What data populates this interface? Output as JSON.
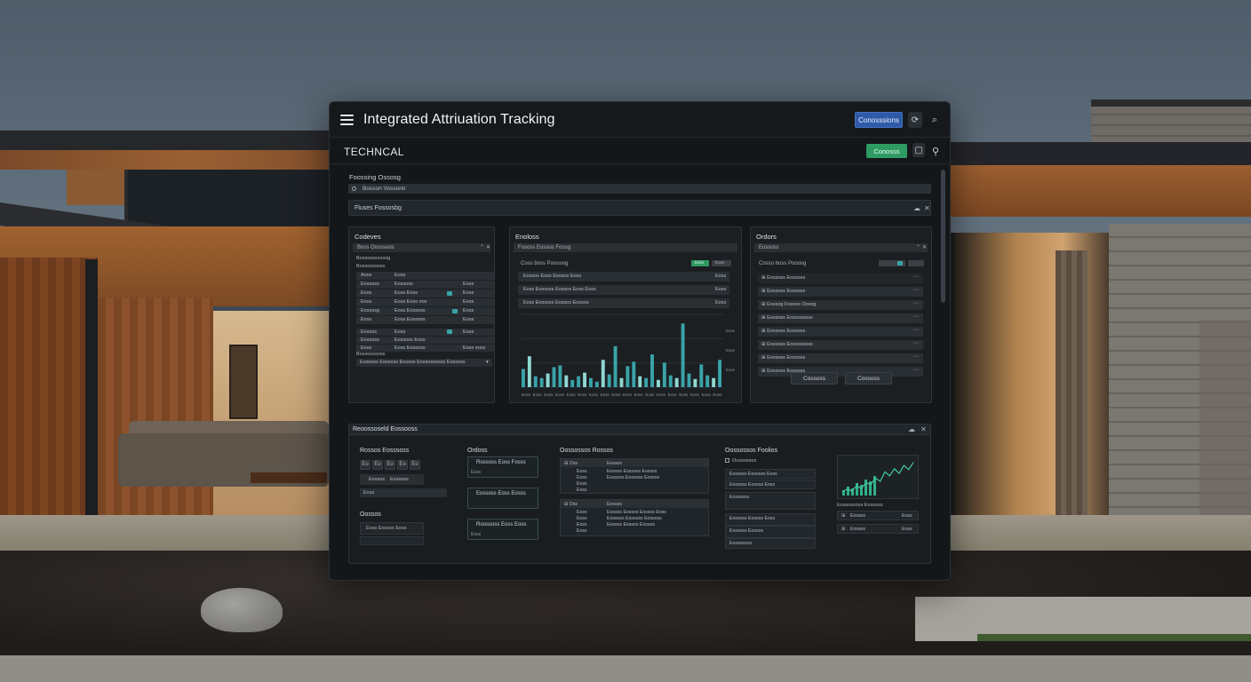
{
  "app": {
    "title": "Integrated Attriuation Tracking",
    "header_button": "Conosssions"
  },
  "section": {
    "title": "TECHNCAL",
    "button": "Conosss"
  },
  "filters": {
    "label": "Foossing Ossosg",
    "bar_text": "Bosson Vossonn",
    "field_label": "Fluses Fossosbg"
  },
  "panels": {
    "left": {
      "title": "Codeves",
      "subbar": "Boss Oosssoos",
      "group_label_1": "Bosssossossog",
      "group_label_2": "Bossoossoss",
      "rows": [
        {
          "a": "Aoss",
          "b": "Eoss",
          "c": ""
        },
        {
          "a": "Eossoss",
          "b": "Eossoss",
          "c": "Eoss"
        },
        {
          "a": "Eoss",
          "b": "Eoss Eoss",
          "c": "Eoss"
        },
        {
          "a": "Eoss",
          "b": "Eoss Eoss oos",
          "c": "Eoss"
        },
        {
          "a": "Eossosg",
          "b": "Eoss Eossoss",
          "c": "Eoss"
        },
        {
          "a": "Eoss",
          "b": "Eoss Eossoss",
          "c": "Eoss"
        }
      ],
      "rows2": [
        {
          "a": "Eossos",
          "b": "Eoss",
          "c": "Eoss"
        },
        {
          "a": "Eossoss",
          "b": "Eossoss Eoss",
          "c": ""
        },
        {
          "a": "Eoss",
          "b": "Eoss Eossoss",
          "c": "Eoss eoss"
        }
      ],
      "group_label_3": "Bossoossoss",
      "footer_row": "Eossoss Eossoss Eossos Eossossosss Eossoss"
    },
    "middle": {
      "title": "Enoloss",
      "subbar": "Fososs Eossos Fosog",
      "chart_label": "Coss boss Pooosog",
      "chip_green": "Eoss",
      "chip_grey": "Eoss",
      "rows": [
        {
          "t": "Eossos Eoss Eossos Eoss",
          "r": "Eoss"
        },
        {
          "t": "Eoss Eossoss Eossos Eoss Eoss",
          "r": "Eoss"
        },
        {
          "t": "Eoss Eossoss Eossos Eossos",
          "r": "Eoss"
        }
      ],
      "chart_data": {
        "type": "bar",
        "values": [
          20,
          34,
          12,
          10,
          15,
          22,
          24,
          13,
          8,
          12,
          16,
          10,
          6,
          30,
          14,
          45,
          10,
          23,
          28,
          12,
          10,
          36,
          8,
          27,
          13,
          10,
          70,
          15,
          9,
          25,
          13,
          10,
          30
        ],
        "ylim": [
          0,
          80
        ],
        "x_ticks": [
          "Eoss",
          "Eoss",
          "Eoss",
          "Eoss",
          "Eoss",
          "Eoss",
          "Eoss",
          "Eoss",
          "Eoss",
          "Eoss",
          "Eoss",
          "Eoss",
          "Eoss",
          "Eoss",
          "Eoss",
          "Eoss",
          "Eoss",
          "Eoss"
        ],
        "y_ticks": [
          "Eoss",
          "Eoss",
          "Eoss"
        ]
      }
    },
    "right": {
      "title": "Ordors",
      "subbar": "Eossoss",
      "chart_label": "Cosso boss Pooosg",
      "header_row": "Eossoss Eossoss",
      "rows": [
        "Eossoss Eossoss",
        "Eossog Fossos Oosog",
        "Eossoss Eossossoss",
        "Eossoss Eossoss",
        "Eossoss Eossossoss",
        "Eossoss Eossoss",
        "Eossoss Eossoss"
      ],
      "btn_1": "Cossoss",
      "btn_2": "Cossoss"
    }
  },
  "lower": {
    "title": "Reoossoseld Eossooss",
    "col1": {
      "title": "Rossos Eosssoss",
      "squares": [
        "Eo",
        "Eo",
        "Eo",
        "Eo",
        "Eo",
        "Eo",
        "Eo"
      ],
      "row2_a": "Eossoss",
      "row2_b": "Eossoss",
      "row3": "Eoss",
      "sub_title": "Oossos",
      "sub_row": "Eoss Eossos Eoss"
    },
    "col2": {
      "title": "Ordoss",
      "boxes": [
        {
          "t": "Rossoss Eoss Fosss",
          "s": "Eoss"
        },
        {
          "t": "Eossoss Eoss Eosss",
          "s": ""
        },
        {
          "t": "Roossoss Eoss Eoss",
          "s": "Eoss"
        }
      ]
    },
    "col3": {
      "title": "Oossossos Rossos",
      "table1": {
        "header": [
          "Oss",
          "Eossos"
        ],
        "rows": [
          [
            "Eoss",
            "Eossos Eossoss Eossos"
          ],
          [
            "Eoss",
            "Eossoss Eossoss Eossos"
          ],
          [
            "Eoss",
            ""
          ],
          [
            "Eoss",
            ""
          ]
        ]
      },
      "table2": {
        "header": [
          "Oss",
          "Eossos"
        ],
        "rows": [
          [
            "Eoss",
            "Eossos Eossos Eossos Eoss"
          ],
          [
            "Eoss",
            "Eossoss Eossoss Eossoss"
          ],
          [
            "Eoss",
            "Eossos Eossos Eossos"
          ],
          [
            "Eoss",
            ""
          ]
        ]
      }
    },
    "col4": {
      "title": "Oossossos Foolios",
      "header": "Oossossos",
      "rows": [
        "Eossoss Eossoss Eoss",
        "Eossoss Eossos Eoss",
        "Eossosss",
        "Eossoss Eossos Eoss",
        "Eossoss Eossos",
        "Eossossos"
      ]
    },
    "col5": {
      "chart_data": {
        "type": "line",
        "values": [
          5,
          8,
          6,
          12,
          9,
          16,
          14,
          22,
          18,
          30,
          25,
          34,
          28,
          38,
          33,
          42
        ],
        "ylim": [
          0,
          45
        ]
      },
      "bars": [
        3,
        5,
        4,
        7,
        6,
        9,
        8,
        11
      ],
      "caption": "Eossossoss Eossoss",
      "row1_a": "Eossos",
      "row1_b": "Eoss",
      "row2_a": "Eossos",
      "row2_b": "Eoss"
    }
  },
  "colors": {
    "accent_blue": "#2f5aa8",
    "accent_green": "#2e9b62",
    "teal": "#3aa3a8"
  }
}
